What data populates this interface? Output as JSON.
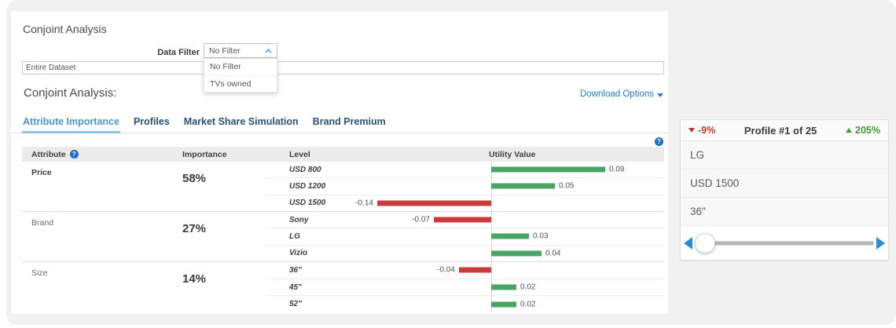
{
  "page": {
    "title": "Conjoint Analysis",
    "section_heading": "Conjoint Analysis:",
    "download_options_label": "Download Options",
    "data_filter": {
      "label": "Data Filter",
      "selected": "No Filter",
      "options": [
        "No Filter",
        "TVs owned"
      ]
    },
    "dataset_field": {
      "value": "Entire Dataset"
    },
    "tabs": [
      {
        "label": "Attribute Importance",
        "active": true
      },
      {
        "label": "Profiles",
        "active": false
      },
      {
        "label": "Market Share Simulation",
        "active": false
      },
      {
        "label": "Brand Premium",
        "active": false
      }
    ]
  },
  "chart_data": {
    "type": "bar",
    "title": "Attribute Importance",
    "columns": [
      "Attribute",
      "Importance",
      "Level",
      "Utility Value"
    ],
    "positive_color": "#4aa564",
    "negative_color": "#cc3b3b",
    "axis": {
      "zero_line": true
    },
    "groups": [
      {
        "attribute": "Price",
        "bold": true,
        "importance": "58%",
        "levels": [
          {
            "label": "USD 800",
            "value": 0.09,
            "display": "0.09"
          },
          {
            "label": "USD 1200",
            "value": 0.05,
            "display": "0.05"
          },
          {
            "label": "USD 1500",
            "value": -0.14,
            "display": "-0.14"
          }
        ]
      },
      {
        "attribute": "Brand",
        "bold": false,
        "importance": "27%",
        "levels": [
          {
            "label": "Sony",
            "value": -0.07,
            "display": "-0.07"
          },
          {
            "label": "LG",
            "value": 0.03,
            "display": "0.03"
          },
          {
            "label": "Vizio",
            "value": 0.04,
            "display": "0.04"
          }
        ]
      },
      {
        "attribute": "Size",
        "bold": false,
        "importance": "14%",
        "levels": [
          {
            "label": "36\"",
            "value": -0.04,
            "display": "-0.04"
          },
          {
            "label": "45\"",
            "value": 0.02,
            "display": "0.02"
          },
          {
            "label": "52\"",
            "value": 0.02,
            "display": "0.02"
          }
        ]
      }
    ]
  },
  "profile_card": {
    "decrease": "-9%",
    "title": "Profile #1 of 25",
    "increase": "205%",
    "rows": [
      "LG",
      "USD 1500",
      "36\""
    ],
    "slider": {
      "position_pct": 5.5
    }
  }
}
